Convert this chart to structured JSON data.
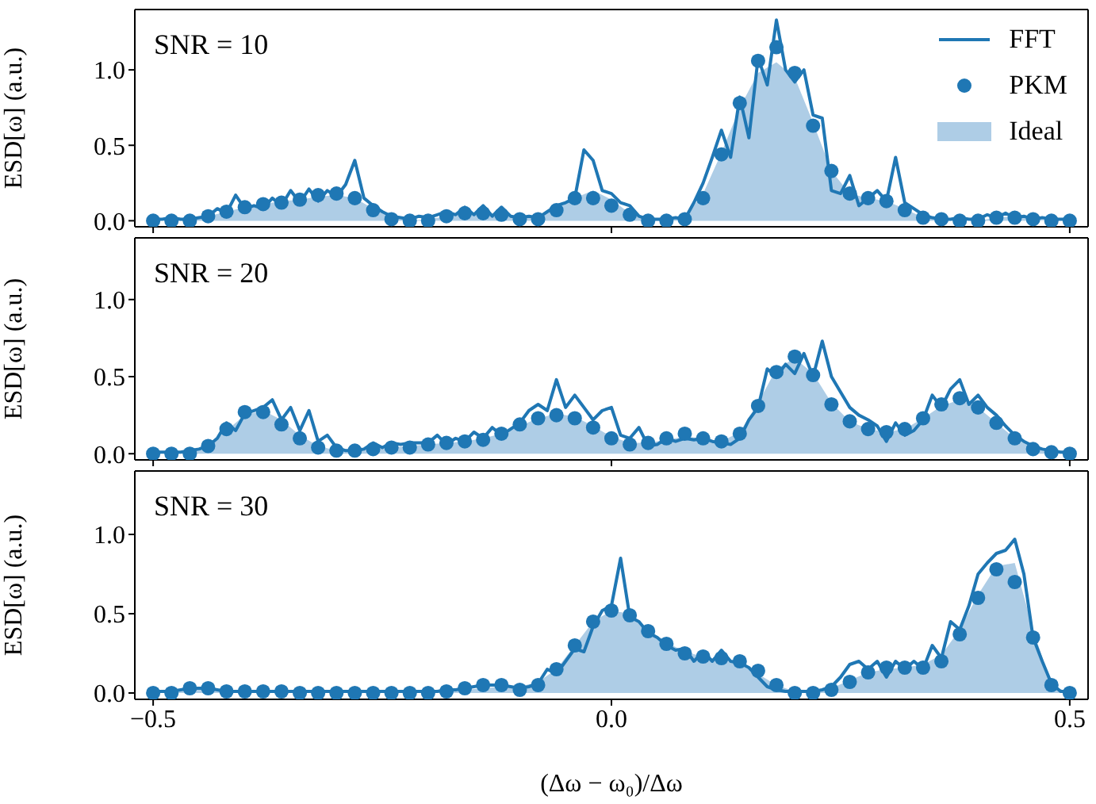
{
  "chart_data": [
    {
      "type": "line",
      "annotations": [
        "SNR = 10"
      ],
      "ylabel": "ESD[ω] (a.u.)",
      "xlim": [
        -0.52,
        0.52
      ],
      "xticks": [
        -0.5,
        0,
        0.5
      ],
      "ylim": [
        -0.04,
        1.4
      ],
      "yticks": [
        {
          "value": 0,
          "label": "0.0"
        },
        {
          "value": 0.5,
          "label": "0.5"
        },
        {
          "value": 1,
          "label": "1.0"
        }
      ],
      "tick_labels": "y",
      "legend": "top right",
      "series": [
        {
          "name": "FFT",
          "color": "#1f77b4",
          "x": [
            -0.5,
            -0.49,
            -0.48,
            -0.47,
            -0.46,
            -0.45,
            -0.44,
            -0.43,
            -0.42,
            -0.41,
            -0.4,
            -0.39,
            -0.38,
            -0.37,
            -0.36,
            -0.35,
            -0.34,
            -0.33,
            -0.32,
            -0.31,
            -0.3,
            -0.29,
            -0.28,
            -0.27,
            -0.26,
            -0.25,
            -0.24,
            -0.23,
            -0.22,
            -0.21,
            -0.2,
            -0.19,
            -0.18,
            -0.17,
            -0.16,
            -0.15,
            -0.14,
            -0.13,
            -0.12,
            -0.11,
            -0.1,
            -0.09,
            -0.08,
            -0.07,
            -0.06,
            -0.05,
            -0.04,
            -0.03,
            -0.02,
            -0.01,
            0,
            0.01,
            0.02,
            0.03,
            0.04,
            0.05,
            0.06,
            0.07,
            0.08,
            0.09,
            0.1,
            0.11,
            0.12,
            0.13,
            0.14,
            0.15,
            0.16,
            0.17,
            0.18,
            0.19,
            0.2,
            0.21,
            0.22,
            0.23,
            0.24,
            0.25,
            0.26,
            0.27,
            0.28,
            0.29,
            0.3,
            0.31,
            0.32,
            0.33,
            0.34,
            0.35,
            0.36,
            0.37,
            0.38,
            0.39,
            0.4,
            0.41,
            0.42,
            0.43,
            0.44,
            0.45,
            0.46,
            0.47,
            0.48,
            0.49,
            0.5
          ],
          "values": [
            0.01,
            0.01,
            0.02,
            0.01,
            0.01,
            0.02,
            0.03,
            0.08,
            0.05,
            0.17,
            0.08,
            0.1,
            0.08,
            0.15,
            0.1,
            0.2,
            0.12,
            0.21,
            0.13,
            0.2,
            0.16,
            0.24,
            0.4,
            0.15,
            0.1,
            0.06,
            0.03,
            0.02,
            0.01,
            0.03,
            0.02,
            0.04,
            0.06,
            0.04,
            0.09,
            0.04,
            0.1,
            0.03,
            0.09,
            0.03,
            0.02,
            0.03,
            0.02,
            0.06,
            0.1,
            0.12,
            0.15,
            0.47,
            0.4,
            0.2,
            0.18,
            0.12,
            0.1,
            0.03,
            0.01,
            0.01,
            0.01,
            0.02,
            0.01,
            0.12,
            0.25,
            0.42,
            0.6,
            0.42,
            0.82,
            0.55,
            1.08,
            0.9,
            1.33,
            1.0,
            0.92,
            1.0,
            0.7,
            0.68,
            0.2,
            0.18,
            0.3,
            0.1,
            0.15,
            0.2,
            0.13,
            0.42,
            0.12,
            0.08,
            0.04,
            0.02,
            0.01,
            0.01,
            0.02,
            0.01,
            0.01,
            0.04,
            0.02,
            0.05,
            0.02,
            0.03,
            0.01,
            0.02,
            0.01,
            0.01,
            0.01
          ]
        },
        {
          "name": "PKM",
          "type": "scatter",
          "marker": "circle",
          "color": "#1f77b4",
          "x": [
            -0.5,
            -0.48,
            -0.46,
            -0.44,
            -0.42,
            -0.4,
            -0.38,
            -0.36,
            -0.34,
            -0.32,
            -0.3,
            -0.28,
            -0.26,
            -0.24,
            -0.22,
            -0.2,
            -0.18,
            -0.16,
            -0.14,
            -0.12,
            -0.1,
            -0.08,
            -0.06,
            -0.04,
            -0.02,
            0,
            0.02,
            0.04,
            0.06,
            0.08,
            0.1,
            0.12,
            0.14,
            0.16,
            0.18,
            0.2,
            0.22,
            0.24,
            0.26,
            0.28,
            0.3,
            0.32,
            0.34,
            0.36,
            0.38,
            0.4,
            0.42,
            0.44,
            0.46,
            0.48,
            0.5
          ],
          "values": [
            0,
            0,
            0,
            0.03,
            0.06,
            0.09,
            0.11,
            0.12,
            0.14,
            0.17,
            0.18,
            0.15,
            0.07,
            0.01,
            0,
            0,
            0.03,
            0.05,
            0.05,
            0.04,
            0.01,
            0.01,
            0.07,
            0.15,
            0.15,
            0.1,
            0.04,
            0,
            0,
            0.01,
            0.15,
            0.44,
            0.78,
            1.06,
            1.15,
            0.98,
            0.63,
            0.33,
            0.18,
            0.15,
            0.13,
            0.07,
            0.02,
            0.01,
            0,
            0,
            0.02,
            0.02,
            0.01,
            0,
            0
          ]
        },
        {
          "name": "Ideal",
          "type": "area",
          "color": "#aecde6",
          "x": [
            -0.5,
            -0.48,
            -0.46,
            -0.44,
            -0.42,
            -0.4,
            -0.38,
            -0.36,
            -0.34,
            -0.32,
            -0.3,
            -0.28,
            -0.26,
            -0.24,
            -0.22,
            -0.2,
            -0.18,
            -0.16,
            -0.14,
            -0.12,
            -0.1,
            -0.08,
            -0.06,
            -0.04,
            -0.02,
            0,
            0.02,
            0.04,
            0.06,
            0.08,
            0.1,
            0.12,
            0.14,
            0.16,
            0.18,
            0.2,
            0.22,
            0.24,
            0.26,
            0.28,
            0.3,
            0.32,
            0.34,
            0.36,
            0.38,
            0.4,
            0.42,
            0.44,
            0.46,
            0.48,
            0.5
          ],
          "values": [
            0,
            0,
            0.01,
            0.03,
            0.06,
            0.09,
            0.11,
            0.13,
            0.14,
            0.16,
            0.17,
            0.15,
            0.08,
            0.02,
            0,
            0.01,
            0.03,
            0.05,
            0.05,
            0.04,
            0.02,
            0.03,
            0.08,
            0.15,
            0.2,
            0.14,
            0.05,
            0.01,
            0,
            0.02,
            0.18,
            0.45,
            0.75,
            0.98,
            1.05,
            0.95,
            0.65,
            0.33,
            0.18,
            0.15,
            0.13,
            0.08,
            0.02,
            0.01,
            0,
            0,
            0.02,
            0.03,
            0.01,
            0,
            0
          ]
        }
      ]
    },
    {
      "type": "line",
      "annotations": [
        "SNR = 20"
      ],
      "ylabel": "ESD[ω] (a.u.)",
      "xlim": [
        -0.52,
        0.52
      ],
      "xticks": [
        -0.5,
        0,
        0.5
      ],
      "ylim": [
        -0.04,
        1.4
      ],
      "yticks": [
        {
          "value": 0,
          "label": "0.0"
        },
        {
          "value": 0.5,
          "label": "0.5"
        },
        {
          "value": 1,
          "label": "1.0"
        }
      ],
      "tick_labels": "y",
      "series": [
        {
          "color": "#1f77b4",
          "x": [
            -0.5,
            -0.49,
            -0.48,
            -0.47,
            -0.46,
            -0.45,
            -0.44,
            -0.43,
            -0.42,
            -0.41,
            -0.4,
            -0.39,
            -0.38,
            -0.37,
            -0.36,
            -0.35,
            -0.34,
            -0.33,
            -0.32,
            -0.31,
            -0.3,
            -0.29,
            -0.28,
            -0.27,
            -0.26,
            -0.25,
            -0.24,
            -0.23,
            -0.22,
            -0.21,
            -0.2,
            -0.19,
            -0.18,
            -0.17,
            -0.16,
            -0.15,
            -0.14,
            -0.13,
            -0.12,
            -0.11,
            -0.1,
            -0.09,
            -0.08,
            -0.07,
            -0.06,
            -0.05,
            -0.04,
            -0.03,
            -0.02,
            -0.01,
            0,
            0.01,
            0.02,
            0.03,
            0.04,
            0.05,
            0.06,
            0.07,
            0.08,
            0.09,
            0.1,
            0.11,
            0.12,
            0.13,
            0.14,
            0.15,
            0.16,
            0.17,
            0.18,
            0.19,
            0.2,
            0.21,
            0.22,
            0.23,
            0.24,
            0.25,
            0.26,
            0.27,
            0.28,
            0.29,
            0.3,
            0.31,
            0.32,
            0.33,
            0.34,
            0.35,
            0.36,
            0.37,
            0.38,
            0.39,
            0.4,
            0.41,
            0.42,
            0.43,
            0.44,
            0.45,
            0.46,
            0.47,
            0.48,
            0.49,
            0.5
          ],
          "values": [
            0.01,
            0.01,
            0.01,
            0.01,
            0.02,
            0.03,
            0.05,
            0.1,
            0.2,
            0.15,
            0.26,
            0.28,
            0.3,
            0.35,
            0.22,
            0.3,
            0.15,
            0.28,
            0.08,
            0.12,
            0.04,
            0.02,
            0.02,
            0.03,
            0.07,
            0.04,
            0.07,
            0.06,
            0.07,
            0.07,
            0.07,
            0.12,
            0.06,
            0.1,
            0.08,
            0.14,
            0.1,
            0.17,
            0.12,
            0.16,
            0.2,
            0.28,
            0.32,
            0.28,
            0.48,
            0.3,
            0.38,
            0.3,
            0.22,
            0.28,
            0.3,
            0.12,
            0.1,
            0.17,
            0.05,
            0.06,
            0.1,
            0.08,
            0.1,
            0.09,
            0.1,
            0.08,
            0.07,
            0.06,
            0.1,
            0.22,
            0.3,
            0.55,
            0.5,
            0.58,
            0.52,
            0.65,
            0.5,
            0.73,
            0.5,
            0.4,
            0.3,
            0.25,
            0.22,
            0.18,
            0.08,
            0.2,
            0.12,
            0.15,
            0.22,
            0.38,
            0.3,
            0.42,
            0.48,
            0.32,
            0.38,
            0.3,
            0.25,
            0.18,
            0.12,
            0.08,
            0.05,
            0.03,
            0.02,
            0.01,
            0.01
          ]
        },
        {
          "type": "scatter",
          "marker": "circle",
          "color": "#1f77b4",
          "x": [
            -0.5,
            -0.48,
            -0.46,
            -0.44,
            -0.42,
            -0.4,
            -0.38,
            -0.36,
            -0.34,
            -0.32,
            -0.3,
            -0.28,
            -0.26,
            -0.24,
            -0.22,
            -0.2,
            -0.18,
            -0.16,
            -0.14,
            -0.12,
            -0.1,
            -0.08,
            -0.06,
            -0.04,
            -0.02,
            0,
            0.02,
            0.04,
            0.06,
            0.08,
            0.1,
            0.12,
            0.14,
            0.16,
            0.18,
            0.2,
            0.22,
            0.24,
            0.26,
            0.28,
            0.3,
            0.32,
            0.34,
            0.36,
            0.38,
            0.4,
            0.42,
            0.44,
            0.46,
            0.48,
            0.5
          ],
          "values": [
            0,
            0,
            0,
            0.05,
            0.16,
            0.27,
            0.27,
            0.19,
            0.1,
            0.04,
            0.02,
            0.02,
            0.03,
            0.04,
            0.04,
            0.06,
            0.07,
            0.08,
            0.09,
            0.13,
            0.19,
            0.23,
            0.25,
            0.23,
            0.17,
            0.1,
            0.06,
            0.07,
            0.1,
            0.13,
            0.1,
            0.08,
            0.13,
            0.31,
            0.53,
            0.63,
            0.51,
            0.32,
            0.21,
            0.16,
            0.14,
            0.16,
            0.23,
            0.32,
            0.36,
            0.3,
            0.2,
            0.1,
            0.03,
            0.01,
            0
          ]
        },
        {
          "type": "area",
          "color": "#aecde6",
          "x": [
            -0.5,
            -0.48,
            -0.46,
            -0.44,
            -0.42,
            -0.4,
            -0.38,
            -0.36,
            -0.34,
            -0.32,
            -0.3,
            -0.28,
            -0.26,
            -0.24,
            -0.22,
            -0.2,
            -0.18,
            -0.16,
            -0.14,
            -0.12,
            -0.1,
            -0.08,
            -0.06,
            -0.04,
            -0.02,
            0,
            0.02,
            0.04,
            0.06,
            0.08,
            0.1,
            0.12,
            0.14,
            0.16,
            0.18,
            0.2,
            0.22,
            0.24,
            0.26,
            0.28,
            0.3,
            0.32,
            0.34,
            0.36,
            0.38,
            0.4,
            0.42,
            0.44,
            0.46,
            0.48,
            0.5
          ],
          "values": [
            0,
            0,
            0.01,
            0.05,
            0.15,
            0.25,
            0.28,
            0.22,
            0.12,
            0.05,
            0.02,
            0.02,
            0.03,
            0.04,
            0.05,
            0.06,
            0.07,
            0.08,
            0.1,
            0.13,
            0.18,
            0.23,
            0.26,
            0.24,
            0.18,
            0.11,
            0.07,
            0.07,
            0.09,
            0.11,
            0.1,
            0.08,
            0.14,
            0.33,
            0.55,
            0.62,
            0.52,
            0.33,
            0.21,
            0.16,
            0.14,
            0.16,
            0.23,
            0.31,
            0.35,
            0.3,
            0.2,
            0.1,
            0.04,
            0.01,
            0
          ]
        }
      ]
    },
    {
      "type": "line",
      "annotations": [
        "SNR = 30"
      ],
      "ylabel": "ESD[ω] (a.u.)",
      "xlabel": "(Δω − ω₀)/Δω",
      "xlim": [
        -0.52,
        0.52
      ],
      "xticks": [
        {
          "value": -0.5,
          "label": "−0.5"
        },
        {
          "value": 0,
          "label": "0.0"
        },
        {
          "value": 0.5,
          "label": "0.5"
        }
      ],
      "ylim": [
        -0.04,
        1.4
      ],
      "yticks": [
        {
          "value": 0,
          "label": "0.0"
        },
        {
          "value": 0.5,
          "label": "0.5"
        },
        {
          "value": 1,
          "label": "1.0"
        }
      ],
      "series": [
        {
          "color": "#1f77b4",
          "x": [
            -0.5,
            -0.49,
            -0.48,
            -0.47,
            -0.46,
            -0.45,
            -0.44,
            -0.43,
            -0.42,
            -0.41,
            -0.4,
            -0.39,
            -0.38,
            -0.37,
            -0.36,
            -0.35,
            -0.34,
            -0.33,
            -0.32,
            -0.31,
            -0.3,
            -0.29,
            -0.28,
            -0.27,
            -0.26,
            -0.25,
            -0.24,
            -0.23,
            -0.22,
            -0.21,
            -0.2,
            -0.19,
            -0.18,
            -0.17,
            -0.16,
            -0.15,
            -0.14,
            -0.13,
            -0.12,
            -0.11,
            -0.1,
            -0.09,
            -0.08,
            -0.07,
            -0.06,
            -0.05,
            -0.04,
            -0.03,
            -0.02,
            -0.01,
            0,
            0.01,
            0.02,
            0.03,
            0.04,
            0.05,
            0.06,
            0.07,
            0.08,
            0.09,
            0.1,
            0.11,
            0.12,
            0.13,
            0.14,
            0.15,
            0.16,
            0.17,
            0.18,
            0.19,
            0.2,
            0.21,
            0.22,
            0.23,
            0.24,
            0.25,
            0.26,
            0.27,
            0.28,
            0.29,
            0.3,
            0.31,
            0.32,
            0.33,
            0.34,
            0.35,
            0.36,
            0.37,
            0.38,
            0.39,
            0.4,
            0.41,
            0.42,
            0.43,
            0.44,
            0.45,
            0.46,
            0.47,
            0.48,
            0.49,
            0.5
          ],
          "values": [
            0.01,
            0.01,
            0.01,
            0.02,
            0.03,
            0.03,
            0.03,
            0.02,
            0.01,
            0.01,
            0.01,
            0.01,
            0.01,
            0.01,
            0.01,
            0.01,
            0.01,
            0.01,
            0.01,
            0.01,
            0.01,
            0.01,
            0.01,
            0.01,
            0.01,
            0.01,
            0.01,
            0.01,
            0.01,
            0.01,
            0.01,
            0.01,
            0.02,
            0.02,
            0.03,
            0.04,
            0.05,
            0.05,
            0.05,
            0.04,
            0.03,
            0.04,
            0.06,
            0.15,
            0.12,
            0.2,
            0.28,
            0.26,
            0.42,
            0.52,
            0.55,
            0.85,
            0.48,
            0.45,
            0.38,
            0.35,
            0.3,
            0.27,
            0.28,
            0.2,
            0.26,
            0.2,
            0.27,
            0.2,
            0.19,
            0.16,
            0.1,
            0.04,
            0.02,
            0.01,
            0.01,
            0.01,
            0.01,
            0.02,
            0.04,
            0.1,
            0.18,
            0.2,
            0.15,
            0.2,
            0.1,
            0.2,
            0.15,
            0.2,
            0.15,
            0.3,
            0.22,
            0.45,
            0.4,
            0.55,
            0.75,
            0.82,
            0.88,
            0.9,
            0.97,
            0.75,
            0.35,
            0.2,
            0.06,
            0.01,
            0.01
          ]
        },
        {
          "type": "scatter",
          "marker": "circle",
          "color": "#1f77b4",
          "x": [
            -0.5,
            -0.48,
            -0.46,
            -0.44,
            -0.42,
            -0.4,
            -0.38,
            -0.36,
            -0.34,
            -0.32,
            -0.3,
            -0.28,
            -0.26,
            -0.24,
            -0.22,
            -0.2,
            -0.18,
            -0.16,
            -0.14,
            -0.12,
            -0.1,
            -0.08,
            -0.06,
            -0.04,
            -0.02,
            0,
            0.02,
            0.04,
            0.06,
            0.08,
            0.1,
            0.12,
            0.14,
            0.16,
            0.18,
            0.2,
            0.22,
            0.24,
            0.26,
            0.28,
            0.3,
            0.32,
            0.34,
            0.36,
            0.38,
            0.4,
            0.42,
            0.44,
            0.46,
            0.48,
            0.5
          ],
          "values": [
            0,
            0,
            0.03,
            0.03,
            0.01,
            0.01,
            0.01,
            0.01,
            0,
            0,
            0,
            0,
            0,
            0,
            0,
            0,
            0.01,
            0.03,
            0.05,
            0.05,
            0.02,
            0.05,
            0.15,
            0.3,
            0.45,
            0.52,
            0.49,
            0.39,
            0.31,
            0.25,
            0.23,
            0.22,
            0.2,
            0.14,
            0.05,
            0,
            0,
            0.02,
            0.07,
            0.13,
            0.16,
            0.16,
            0.16,
            0.2,
            0.37,
            0.6,
            0.78,
            0.7,
            0.35,
            0.05,
            0
          ]
        },
        {
          "type": "area",
          "color": "#aecde6",
          "x": [
            -0.5,
            -0.48,
            -0.46,
            -0.44,
            -0.42,
            -0.4,
            -0.38,
            -0.36,
            -0.34,
            -0.32,
            -0.3,
            -0.28,
            -0.26,
            -0.24,
            -0.22,
            -0.2,
            -0.18,
            -0.16,
            -0.14,
            -0.12,
            -0.1,
            -0.08,
            -0.06,
            -0.04,
            -0.02,
            0,
            0.02,
            0.04,
            0.06,
            0.08,
            0.1,
            0.12,
            0.14,
            0.16,
            0.18,
            0.2,
            0.22,
            0.24,
            0.26,
            0.28,
            0.3,
            0.32,
            0.34,
            0.36,
            0.38,
            0.4,
            0.42,
            0.44,
            0.46,
            0.48,
            0.5
          ],
          "values": [
            0,
            0.01,
            0.02,
            0.02,
            0.01,
            0.01,
            0.01,
            0.01,
            0.01,
            0.01,
            0.01,
            0.01,
            0.01,
            0.01,
            0.01,
            0.01,
            0.01,
            0.02,
            0.03,
            0.04,
            0.04,
            0.07,
            0.15,
            0.3,
            0.45,
            0.52,
            0.5,
            0.4,
            0.32,
            0.26,
            0.23,
            0.21,
            0.18,
            0.12,
            0.05,
            0.01,
            0.01,
            0.03,
            0.08,
            0.13,
            0.15,
            0.16,
            0.18,
            0.24,
            0.4,
            0.62,
            0.8,
            0.82,
            0.4,
            0.05,
            0
          ]
        }
      ]
    }
  ]
}
